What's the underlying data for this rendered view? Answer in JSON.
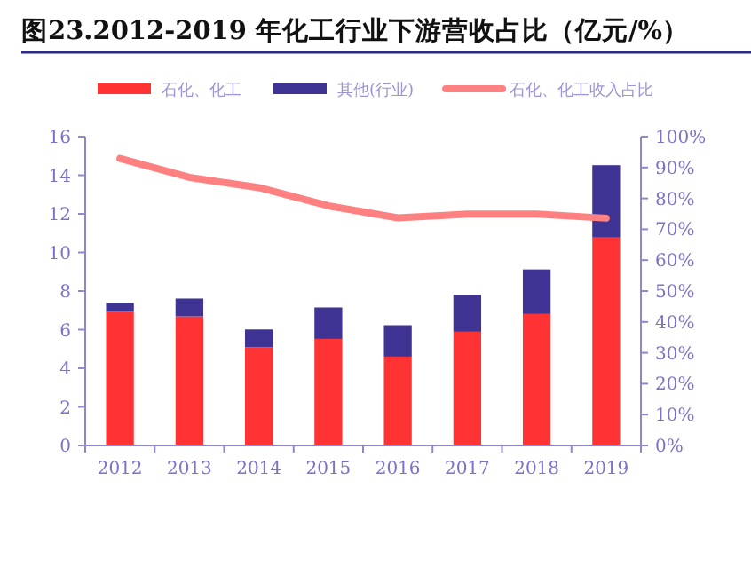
{
  "chart_data": {
    "type": "bar",
    "title": "图23.2012-2019 年化工行业下游营收占比（亿元/%）",
    "categories": [
      "2012",
      "2013",
      "2014",
      "2015",
      "2016",
      "2017",
      "2018",
      "2019"
    ],
    "stacked": true,
    "legend": "top",
    "grid": false,
    "series": [
      {
        "name": "石化、化工",
        "color": "#ff3333",
        "values": [
          6.93,
          6.69,
          5.09,
          5.52,
          4.6,
          5.89,
          6.81,
          10.77
        ]
      },
      {
        "name": "其他(行业)",
        "color": "#3f3394",
        "values": [
          0.46,
          0.92,
          0.92,
          1.63,
          1.63,
          1.91,
          2.31,
          3.75
        ]
      },
      {
        "name": "石化、化工收入占比",
        "type": "line",
        "axis": "y2",
        "color": "#ff8080",
        "values": [
          92.9,
          86.8,
          83.5,
          77.6,
          73.7,
          74.9,
          74.9,
          73.6
        ]
      }
    ],
    "ylim": [
      0,
      16
    ],
    "yticks": [
      0,
      2,
      4,
      6,
      8,
      10,
      12,
      14,
      16
    ],
    "y2lim": [
      0,
      100
    ],
    "y2ticks": [
      {
        "value": 0,
        "label": "0%"
      },
      {
        "value": 10,
        "label": "10%"
      },
      {
        "value": 20,
        "label": "20%"
      },
      {
        "value": 30,
        "label": "30%"
      },
      {
        "value": 40,
        "label": "40%"
      },
      {
        "value": 50,
        "label": "50%"
      },
      {
        "value": 60,
        "label": "60%"
      },
      {
        "value": 70,
        "label": "70%"
      },
      {
        "value": 80,
        "label": "80%"
      },
      {
        "value": 90,
        "label": "90%"
      },
      {
        "value": 100,
        "label": "100%"
      }
    ]
  }
}
